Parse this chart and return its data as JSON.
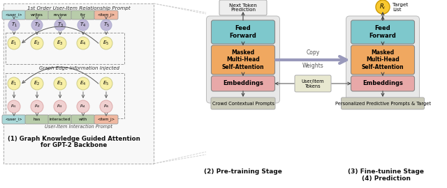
{
  "fig_width": 6.4,
  "fig_height": 2.7,
  "dpi": 100,
  "bg_color": "#ffffff",
  "left_panel": {
    "title": "1st Order User-Item Relationship Prompt",
    "top_labels": [
      "<user_i>",
      "writes",
      "review",
      "for",
      "<item_j>"
    ],
    "top_label_colors": [
      "#aad8d8",
      "#b8ccaa",
      "#b8ccaa",
      "#b8ccaa",
      "#f0b8a0"
    ],
    "T_labels": [
      "$T_1$",
      "$T_2$",
      "$T_3$",
      "$T_4$",
      "$T_5$"
    ],
    "E_top_labels": [
      "$E_1$",
      "$E_2$",
      "$E_3$",
      "$E_4$",
      "$E_5$"
    ],
    "E_bot_labels": [
      "$E_1$",
      "$E_2$",
      "$E_3$",
      "$E_4$",
      "$E_5$"
    ],
    "P_labels": [
      "$P_{r1}$",
      "$P_{r2}$",
      "$P_{r3}$",
      "$P_{r4}$",
      "$P_{r5}$"
    ],
    "bot_labels": [
      "<user_i>",
      "has",
      "interacted",
      "with",
      "<item_j>"
    ],
    "bot_label_colors": [
      "#aad8d8",
      "#b8ccaa",
      "#b8ccaa",
      "#b8ccaa",
      "#f0b8a0"
    ],
    "mid_text": "Graph Edge Information Injected",
    "bot_text": "User-Item Interaction Prompt",
    "caption1": "(1) Graph Knowledge Guided Attention",
    "caption2": "for GPT-2 Backbone",
    "T_color": "#c0b8d8",
    "E_color": "#f8f0a8",
    "P_color": "#f0d0d0",
    "dashed_box_color": "#999999"
  },
  "right_panel_left": {
    "title": "Next Token\nPrediction",
    "ff_color": "#7ec8cc",
    "attn_color": "#f0a860",
    "emb_color": "#e8a8a8",
    "prompt_color": "#d0d0c0",
    "ff_label": "Feed\nForward",
    "attn_label": "Masked\nMulti-Head\nSelf-Attention",
    "emb_label": "Embeddings",
    "prompt_label": "Crowd Contextual Prompts",
    "caption": "(2) Pre-training Stage"
  },
  "right_panel_right": {
    "title": "Target\nList",
    "R_color": "#f8c830",
    "R_label": "$R_i$",
    "ff_color": "#7ec8cc",
    "attn_color": "#f0a860",
    "emb_color": "#e8a8a8",
    "prompt_color": "#d0d0c0",
    "ff_label": "Feed\nForward",
    "attn_label": "Masked\nMulti-Head\nSelf-Attention",
    "emb_label": "Embeddings",
    "prompt_label": "Personalized Predictive Prompts & Target",
    "caption": "(3) Fine-tunine Stage\n(4) Prediction"
  },
  "copy_arrow_label1": "Copy",
  "copy_arrow_label2": "Weights",
  "tokens_label": "User/Item\nTokens",
  "tokens_color": "#e8e8d0",
  "copy_arrow_color": "#9999bb"
}
